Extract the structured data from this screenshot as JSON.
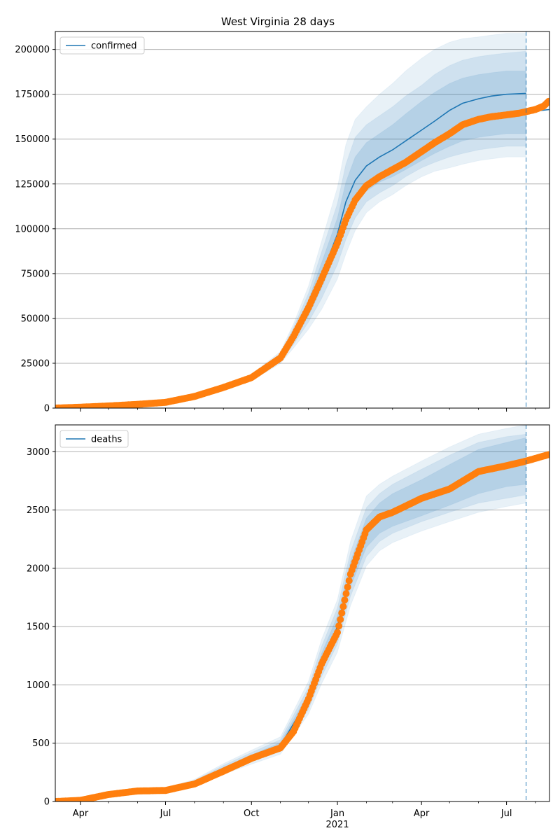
{
  "title": "West Virginia 28 days",
  "colors": {
    "model_line": "#1f77b4",
    "band": "#1f77b4",
    "observed": "#ff7f0e",
    "vline": "#1f77b4",
    "grid": "#b0b0b0"
  },
  "x_ticks": {
    "labels": [
      "Apr",
      "Jul",
      "Oct",
      "Jan",
      "Apr",
      "Jul"
    ],
    "dates": [
      "2020-04-01",
      "2020-07-01",
      "2020-10-01",
      "2021-01-01",
      "2021-04-01",
      "2021-07-01"
    ],
    "year_label": "2021",
    "year_label_date": "2021-01-01"
  },
  "chart_data": [
    {
      "type": "line",
      "legend": "confirmed",
      "legend_placement": "top-left",
      "grid": "y",
      "xlim": [
        "2020-03-05",
        "2021-08-16"
      ],
      "ylim": [
        0,
        210000
      ],
      "yticks": [
        0,
        25000,
        50000,
        75000,
        100000,
        125000,
        150000,
        175000,
        200000
      ],
      "ytick_labels": [
        "0",
        "25000",
        "50000",
        "75000",
        "100000",
        "125000",
        "150000",
        "175000",
        "200000"
      ],
      "forecast_date": "2021-07-22",
      "model": {
        "x": [
          "2020-03-05",
          "2020-04-01",
          "2020-05-01",
          "2020-06-01",
          "2020-07-01",
          "2020-08-01",
          "2020-09-01",
          "2020-10-01",
          "2020-11-01",
          "2020-11-15",
          "2020-12-01",
          "2020-12-15",
          "2021-01-01",
          "2021-01-10",
          "2021-01-20",
          "2021-02-01",
          "2021-02-15",
          "2021-03-01",
          "2021-03-15",
          "2021-04-01",
          "2021-04-15",
          "2021-05-01",
          "2021-05-15",
          "2021-06-01",
          "2021-06-15",
          "2021-07-01",
          "2021-07-22"
        ],
        "median": [
          0,
          600,
          1200,
          2100,
          3200,
          6500,
          11500,
          17000,
          28000,
          40000,
          56000,
          74000,
          97000,
          115000,
          127000,
          135000,
          140000,
          144000,
          149000,
          155000,
          160000,
          166000,
          170000,
          172500,
          174000,
          175000,
          175500
        ],
        "band_50": [
          [
            0,
            0
          ],
          [
            600,
            600
          ],
          [
            1150,
            1250
          ],
          [
            2000,
            2200
          ],
          [
            3000,
            3400
          ],
          [
            6100,
            6900
          ],
          [
            10900,
            12100
          ],
          [
            16200,
            17800
          ],
          [
            26700,
            29500
          ],
          [
            37500,
            43000
          ],
          [
            51500,
            60500
          ],
          [
            67000,
            81000
          ],
          [
            88000,
            106000
          ],
          [
            103000,
            126000
          ],
          [
            114000,
            140000
          ],
          [
            121000,
            148000
          ],
          [
            126000,
            153000
          ],
          [
            129000,
            158000
          ],
          [
            133000,
            164000
          ],
          [
            138000,
            171000
          ],
          [
            142000,
            176000
          ],
          [
            146000,
            181000
          ],
          [
            149000,
            184000
          ],
          [
            151000,
            186000
          ],
          [
            152000,
            187000
          ],
          [
            153000,
            188000
          ],
          [
            153000,
            188000
          ]
        ],
        "band_80": [
          [
            0,
            0
          ],
          [
            550,
            650
          ],
          [
            1100,
            1300
          ],
          [
            1950,
            2250
          ],
          [
            2900,
            3500
          ],
          [
            5900,
            7100
          ],
          [
            10500,
            12500
          ],
          [
            15700,
            18300
          ],
          [
            25800,
            30500
          ],
          [
            35500,
            45000
          ],
          [
            48000,
            64000
          ],
          [
            61000,
            87000
          ],
          [
            80000,
            114000
          ],
          [
            94000,
            136000
          ],
          [
            106000,
            151000
          ],
          [
            115000,
            158000
          ],
          [
            120000,
            163000
          ],
          [
            124000,
            168000
          ],
          [
            129000,
            174000
          ],
          [
            134000,
            180000
          ],
          [
            137000,
            186000
          ],
          [
            140000,
            191000
          ],
          [
            142000,
            194000
          ],
          [
            144000,
            196000
          ],
          [
            145000,
            197000
          ],
          [
            146000,
            198000
          ],
          [
            146000,
            199000
          ]
        ],
        "band_95": [
          [
            0,
            0
          ],
          [
            500,
            700
          ],
          [
            1050,
            1350
          ],
          [
            1900,
            2300
          ],
          [
            2800,
            3600
          ],
          [
            5700,
            7300
          ],
          [
            10100,
            12900
          ],
          [
            15200,
            18800
          ],
          [
            24900,
            31500
          ],
          [
            33500,
            47000
          ],
          [
            44000,
            68000
          ],
          [
            55000,
            93000
          ],
          [
            72000,
            123000
          ],
          [
            86000,
            147000
          ],
          [
            99000,
            161000
          ],
          [
            109000,
            168000
          ],
          [
            115000,
            175000
          ],
          [
            119000,
            181000
          ],
          [
            124000,
            188000
          ],
          [
            129000,
            195000
          ],
          [
            132000,
            200000
          ],
          [
            134000,
            204000
          ],
          [
            136000,
            206000
          ],
          [
            138000,
            207000
          ],
          [
            139000,
            208000
          ],
          [
            140000,
            209000
          ],
          [
            140000,
            209000
          ]
        ]
      },
      "observed": {
        "x": [
          "2020-03-05",
          "2020-04-01",
          "2020-05-01",
          "2020-06-01",
          "2020-07-01",
          "2020-08-01",
          "2020-09-01",
          "2020-10-01",
          "2020-11-01",
          "2020-11-15",
          "2020-12-01",
          "2020-12-15",
          "2021-01-01",
          "2021-01-10",
          "2021-01-20",
          "2021-02-01",
          "2021-02-15",
          "2021-03-01",
          "2021-03-15",
          "2021-04-01",
          "2021-04-15",
          "2021-05-01",
          "2021-05-15",
          "2021-06-01",
          "2021-06-15",
          "2021-07-01",
          "2021-07-15",
          "2021-08-01",
          "2021-08-10",
          "2021-08-15"
        ],
        "values": [
          0,
          500,
          1200,
          2100,
          3200,
          6500,
          11500,
          17000,
          28000,
          40000,
          56000,
          72000,
          92000,
          105000,
          116000,
          124000,
          129000,
          133000,
          137000,
          143000,
          148000,
          153000,
          158000,
          161000,
          162500,
          163500,
          164500,
          166500,
          168500,
          171000
        ]
      },
      "forecast_tail": {
        "x": [
          "2021-07-22",
          "2021-08-16"
        ],
        "values": [
          165000,
          166500
        ]
      }
    },
    {
      "type": "line",
      "legend": "deaths",
      "legend_placement": "top-left",
      "grid": "y",
      "xlim": [
        "2020-03-05",
        "2021-08-16"
      ],
      "ylim": [
        0,
        3230
      ],
      "yticks": [
        0,
        500,
        1000,
        1500,
        2000,
        2500,
        3000
      ],
      "ytick_labels": [
        "0",
        "500",
        "1000",
        "1500",
        "2000",
        "2500",
        "3000"
      ],
      "forecast_date": "2021-07-22",
      "model": {
        "x": [
          "2020-03-05",
          "2020-04-01",
          "2020-05-01",
          "2020-06-01",
          "2020-07-01",
          "2020-08-01",
          "2020-09-01",
          "2020-10-01",
          "2020-11-01",
          "2020-12-01",
          "2020-12-15",
          "2021-01-01",
          "2021-01-15",
          "2021-02-01",
          "2021-02-15",
          "2021-03-01",
          "2021-04-01",
          "2021-05-01",
          "2021-06-01",
          "2021-07-01",
          "2021-07-22"
        ],
        "median": [
          0,
          10,
          60,
          90,
          100,
          160,
          280,
          380,
          480,
          880,
          1200,
          1500,
          1950,
          2300,
          2420,
          2480,
          2580,
          2700,
          2830,
          2880,
          2910
        ],
        "band_50": [
          [
            0,
            0
          ],
          [
            8,
            12
          ],
          [
            55,
            65
          ],
          [
            85,
            95
          ],
          [
            95,
            105
          ],
          [
            150,
            170
          ],
          [
            265,
            295
          ],
          [
            360,
            400
          ],
          [
            455,
            505
          ],
          [
            830,
            930
          ],
          [
            1130,
            1270
          ],
          [
            1420,
            1590
          ],
          [
            1840,
            2060
          ],
          [
            2180,
            2430
          ],
          [
            2300,
            2560
          ],
          [
            2360,
            2640
          ],
          [
            2450,
            2760
          ],
          [
            2540,
            2890
          ],
          [
            2640,
            3020
          ],
          [
            2700,
            3080
          ],
          [
            2720,
            3120
          ]
        ],
        "band_80": [
          [
            0,
            0
          ],
          [
            6,
            14
          ],
          [
            50,
            70
          ],
          [
            80,
            100
          ],
          [
            90,
            110
          ],
          [
            140,
            180
          ],
          [
            250,
            310
          ],
          [
            340,
            420
          ],
          [
            430,
            530
          ],
          [
            790,
            980
          ],
          [
            1070,
            1330
          ],
          [
            1350,
            1660
          ],
          [
            1760,
            2140
          ],
          [
            2100,
            2520
          ],
          [
            2230,
            2640
          ],
          [
            2300,
            2720
          ],
          [
            2400,
            2850
          ],
          [
            2480,
            2970
          ],
          [
            2560,
            3080
          ],
          [
            2600,
            3130
          ],
          [
            2630,
            3150
          ]
        ],
        "band_95": [
          [
            0,
            0
          ],
          [
            4,
            16
          ],
          [
            45,
            75
          ],
          [
            75,
            105
          ],
          [
            85,
            115
          ],
          [
            130,
            190
          ],
          [
            235,
            325
          ],
          [
            320,
            440
          ],
          [
            405,
            555
          ],
          [
            750,
            1030
          ],
          [
            1010,
            1390
          ],
          [
            1280,
            1730
          ],
          [
            1680,
            2230
          ],
          [
            2020,
            2620
          ],
          [
            2150,
            2720
          ],
          [
            2220,
            2790
          ],
          [
            2320,
            2920
          ],
          [
            2400,
            3040
          ],
          [
            2480,
            3150
          ],
          [
            2530,
            3200
          ],
          [
            2560,
            3230
          ]
        ]
      },
      "observed": {
        "x": [
          "2020-03-05",
          "2020-04-01",
          "2020-05-01",
          "2020-06-01",
          "2020-07-01",
          "2020-08-01",
          "2020-09-01",
          "2020-10-01",
          "2020-11-01",
          "2020-11-15",
          "2020-12-01",
          "2020-12-15",
          "2021-01-01",
          "2021-01-15",
          "2021-02-01",
          "2021-02-15",
          "2021-03-01",
          "2021-04-01",
          "2021-05-01",
          "2021-06-01",
          "2021-07-01",
          "2021-07-22",
          "2021-08-15"
        ],
        "values": [
          0,
          10,
          60,
          90,
          95,
          150,
          260,
          370,
          460,
          600,
          880,
          1180,
          1450,
          1950,
          2330,
          2440,
          2480,
          2600,
          2680,
          2830,
          2880,
          2920,
          2975
        ]
      }
    }
  ]
}
